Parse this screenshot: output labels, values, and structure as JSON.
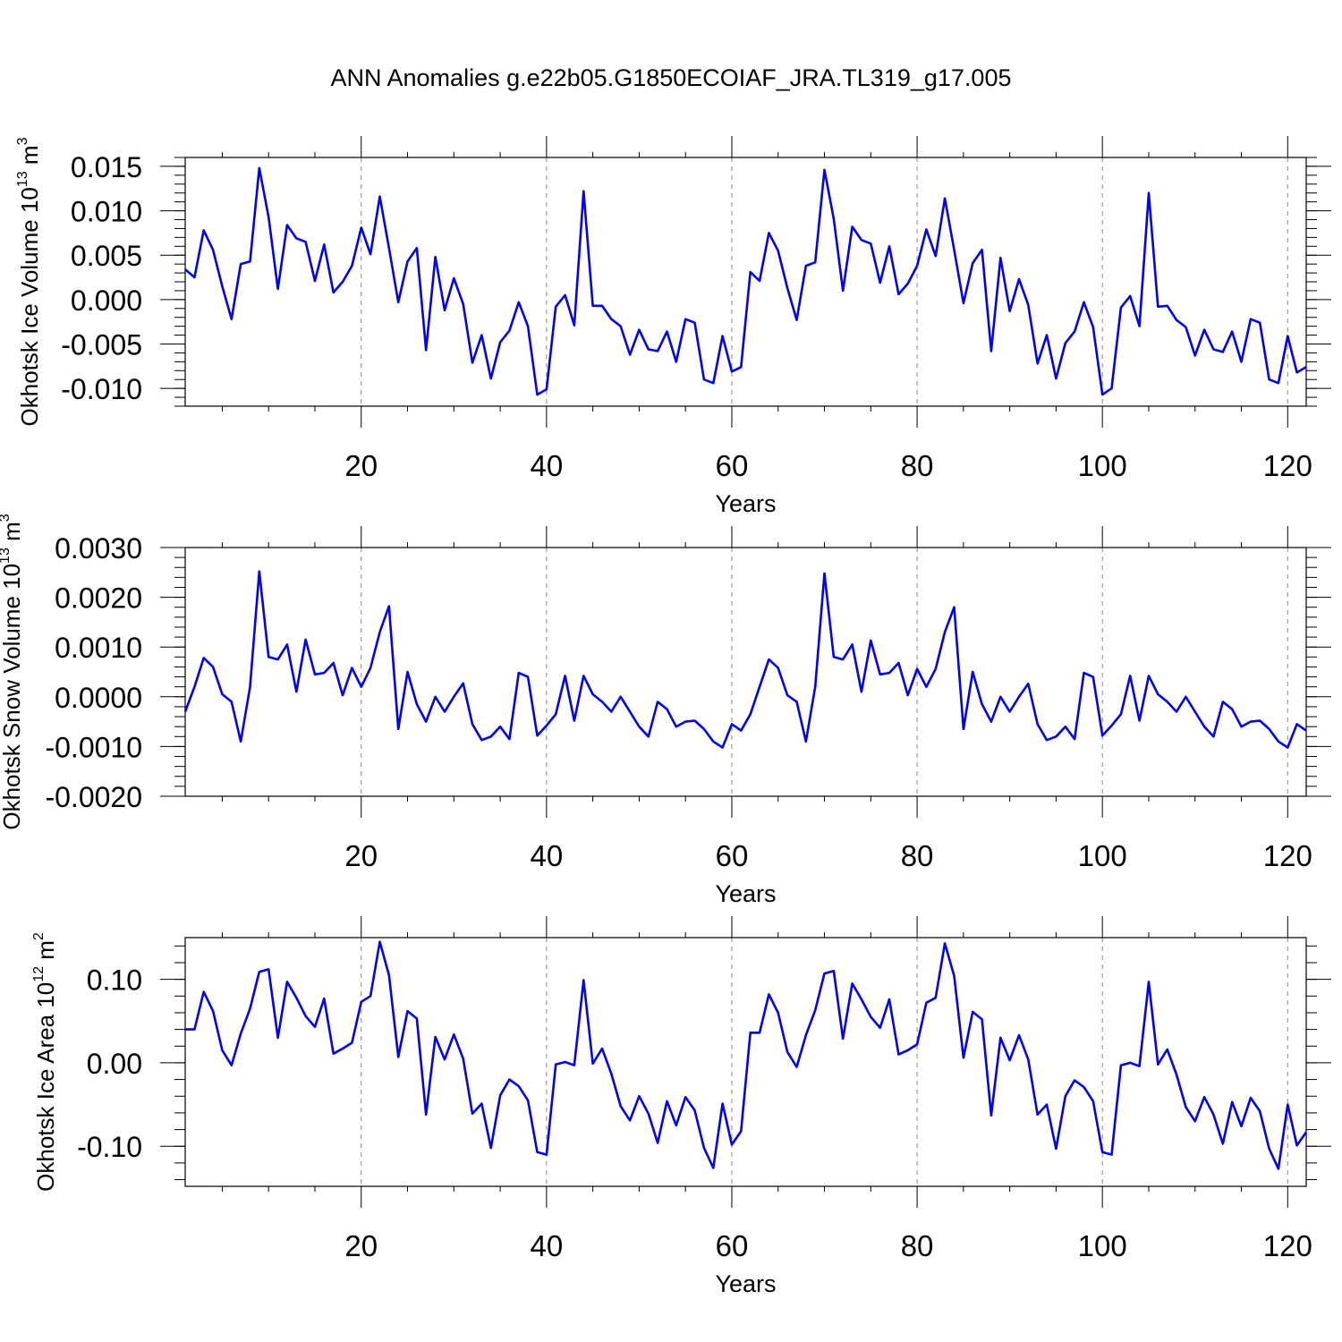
{
  "title": "ANN Anomalies g.e22b05.G1850ECOIAF_JRA.TL319_g17.005",
  "colors": {
    "line": "#0000ff",
    "axis": "#000000",
    "grid": "#888888"
  },
  "chart_data": [
    {
      "type": "line",
      "ylabel": "Okhotsk Ice Volume 10",
      "ylabel_exp": "13",
      "ylabel_unit": " m",
      "ylabel_unit_exp": "3",
      "xlabel": "Years",
      "xlim": [
        1,
        122
      ],
      "ylim": [
        -0.012,
        0.016
      ],
      "yticks": [
        -0.01,
        -0.005,
        0.0,
        0.005,
        0.01,
        0.015
      ],
      "ytick_labels": [
        "-0.010",
        "-0.005",
        "0.000",
        "0.005",
        "0.010",
        "0.015"
      ],
      "xticks": [
        20,
        40,
        60,
        80,
        100,
        120
      ],
      "xtick_labels": [
        "20",
        "40",
        "60",
        "80",
        "100",
        "120"
      ],
      "grid_vertical": true,
      "series": [
        {
          "values": [
            0.0034,
            0.0025,
            0.0078,
            0.0056,
            0.0015,
            -0.0022,
            0.004,
            0.0043,
            0.0148,
            0.0093,
            0.0012,
            0.0084,
            0.0069,
            0.0065,
            0.0021,
            0.0062,
            0.0008,
            0.002,
            0.0038,
            0.0081,
            0.0051,
            0.0116,
            0.0058,
            -0.0003,
            0.0043,
            0.0058,
            -0.0057,
            0.0048,
            -0.0012,
            0.0024,
            -0.0005,
            -0.0071,
            -0.004,
            -0.0089,
            -0.0048,
            -0.0035,
            -0.0003,
            -0.003,
            -0.0107,
            -0.0101,
            -0.0008,
            0.0005,
            -0.0029,
            0.0122,
            -0.0007,
            -0.0007,
            -0.0022,
            -0.003,
            -0.0062,
            -0.0034,
            -0.0056,
            -0.0058,
            -0.0036,
            -0.007,
            -0.0022,
            -0.0026,
            -0.009,
            -0.0094,
            -0.0041,
            -0.0081,
            -0.0076,
            0.0031,
            0.0021,
            0.0075,
            0.0055,
            0.0013,
            -0.0023,
            0.0038,
            0.0042,
            0.0146,
            0.0091,
            0.001,
            0.0082,
            0.0067,
            0.0063,
            0.0019,
            0.006,
            0.0006,
            0.0018,
            0.0038,
            0.0079,
            0.0049,
            0.0114,
            0.0056,
            -0.0004,
            0.0041,
            0.0056,
            -0.0058,
            0.0047,
            -0.0013,
            0.0023,
            -0.0006,
            -0.0072,
            -0.004,
            -0.0089,
            -0.0049,
            -0.0036,
            -0.0003,
            -0.0031,
            -0.0107,
            -0.01,
            -0.0009,
            0.0004,
            -0.003,
            0.012,
            -0.0008,
            -0.0007,
            -0.0023,
            -0.0031,
            -0.0063,
            -0.0034,
            -0.0056,
            -0.0059,
            -0.0036,
            -0.007,
            -0.0022,
            -0.0026,
            -0.009,
            -0.0094,
            -0.0041,
            -0.0082,
            -0.0076
          ]
        }
      ]
    },
    {
      "type": "line",
      "ylabel": "Okhotsk Snow Volume 10",
      "ylabel_exp": "13",
      "ylabel_unit": " m",
      "ylabel_unit_exp": "3",
      "xlabel": "Years",
      "xlim": [
        1,
        122
      ],
      "ylim": [
        -0.002,
        0.003
      ],
      "yticks": [
        -0.002,
        -0.001,
        0.0,
        0.001,
        0.002,
        0.003
      ],
      "ytick_labels": [
        "-0.0020",
        "-0.0010",
        "0.0000",
        "0.0010",
        "0.0020",
        "0.0030"
      ],
      "xticks": [
        20,
        40,
        60,
        80,
        100,
        120
      ],
      "xtick_labels": [
        "20",
        "40",
        "60",
        "80",
        "100",
        "120"
      ],
      "grid_vertical": true,
      "series": [
        {
          "values": [
            -0.0003,
            0.0002,
            0.00078,
            0.0006,
            5e-05,
            -0.0001,
            -0.0009,
            0.0002,
            0.00252,
            0.0008,
            0.00075,
            0.00105,
            0.0001,
            0.00115,
            0.00045,
            0.00048,
            0.00068,
            3e-05,
            0.00058,
            0.0002,
            0.00058,
            0.0013,
            0.00182,
            -0.00065,
            0.0005,
            -0.00015,
            -0.0005,
            0.0,
            -0.0003,
            0.0,
            0.00027,
            -0.00055,
            -0.00087,
            -0.0008,
            -0.0006,
            -0.00085,
            0.00048,
            0.0004,
            -0.00078,
            -0.00058,
            -0.00035,
            0.00042,
            -0.00048,
            0.00042,
            5e-05,
            -0.0001,
            -0.0003,
            0.0,
            -0.0003,
            -0.0006,
            -0.0008,
            -0.0001,
            -0.00025,
            -0.0006,
            -0.0005,
            -0.00048,
            -0.00065,
            -0.0009,
            -0.00102,
            -0.00055,
            -0.00068,
            -0.00035,
            0.0002,
            0.00075,
            0.00058,
            3e-05,
            -0.0001,
            -0.0009,
            0.0002,
            0.00248,
            0.0008,
            0.00075,
            0.00105,
            0.0001,
            0.00113,
            0.00045,
            0.00048,
            0.00068,
            3e-05,
            0.00056,
            0.0002,
            0.00056,
            0.0013,
            0.0018,
            -0.00065,
            0.0005,
            -0.00015,
            -0.0005,
            0.0,
            -0.0003,
            0.0,
            0.00026,
            -0.00055,
            -0.00087,
            -0.0008,
            -0.0006,
            -0.00085,
            0.00048,
            0.0004,
            -0.00078,
            -0.00058,
            -0.00035,
            0.00042,
            -0.00048,
            0.00042,
            5e-05,
            -0.0001,
            -0.0003,
            0.0,
            -0.0003,
            -0.0006,
            -0.0008,
            -0.0001,
            -0.00025,
            -0.0006,
            -0.0005,
            -0.00048,
            -0.00065,
            -0.0009,
            -0.00102,
            -0.00055,
            -0.00068
          ]
        }
      ]
    },
    {
      "type": "line",
      "ylabel": "Okhotsk Ice Area 10",
      "ylabel_exp": "12",
      "ylabel_unit": " m",
      "ylabel_unit_exp": "2",
      "xlabel": "Years",
      "xlim": [
        1,
        122
      ],
      "ylim": [
        -0.148,
        0.15
      ],
      "yticks": [
        -0.1,
        0.0,
        0.1
      ],
      "ytick_labels": [
        "-0.10",
        "0.00",
        "0.10"
      ],
      "xticks": [
        20,
        40,
        60,
        80,
        100,
        120
      ],
      "xtick_labels": [
        "20",
        "40",
        "60",
        "80",
        "100",
        "120"
      ],
      "grid_vertical": true,
      "series": [
        {
          "values": [
            0.04,
            0.04,
            0.085,
            0.062,
            0.015,
            -0.003,
            0.035,
            0.065,
            0.109,
            0.112,
            0.03,
            0.097,
            0.078,
            0.056,
            0.043,
            0.077,
            0.011,
            0.017,
            0.024,
            0.073,
            0.08,
            0.145,
            0.105,
            0.007,
            0.062,
            0.053,
            -0.062,
            0.031,
            0.004,
            0.034,
            0.005,
            -0.061,
            -0.049,
            -0.102,
            -0.039,
            -0.02,
            -0.028,
            -0.045,
            -0.107,
            -0.11,
            -0.002,
            0.001,
            -0.003,
            0.099,
            -0.001,
            0.017,
            -0.013,
            -0.052,
            -0.069,
            -0.04,
            -0.061,
            -0.096,
            -0.046,
            -0.075,
            -0.041,
            -0.057,
            -0.102,
            -0.126,
            -0.049,
            -0.098,
            -0.082,
            0.036,
            0.036,
            0.082,
            0.06,
            0.013,
            -0.005,
            0.033,
            0.063,
            0.107,
            0.11,
            0.029,
            0.095,
            0.076,
            0.055,
            0.042,
            0.076,
            0.01,
            0.015,
            0.022,
            0.072,
            0.078,
            0.143,
            0.104,
            0.006,
            0.061,
            0.052,
            -0.063,
            0.03,
            0.003,
            0.033,
            0.004,
            -0.062,
            -0.05,
            -0.103,
            -0.04,
            -0.021,
            -0.029,
            -0.046,
            -0.107,
            -0.11,
            -0.003,
            0.0,
            -0.004,
            0.097,
            -0.002,
            0.016,
            -0.014,
            -0.053,
            -0.07,
            -0.041,
            -0.062,
            -0.097,
            -0.047,
            -0.076,
            -0.042,
            -0.058,
            -0.103,
            -0.127,
            -0.05,
            -0.099,
            -0.083
          ]
        }
      ]
    }
  ]
}
